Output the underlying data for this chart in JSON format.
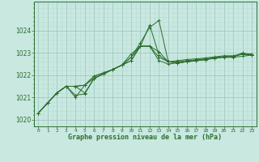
{
  "xlabel": "Graphe pression niveau de la mer (hPa)",
  "bg_color": "#c8e8e0",
  "grid_major_color": "#a0c8c0",
  "grid_minor_color": "#b8dcd8",
  "line_color": "#2d6e2d",
  "ylim": [
    1019.7,
    1025.3
  ],
  "xlim": [
    -0.5,
    23.5
  ],
  "yticks": [
    1020,
    1021,
    1022,
    1023,
    1024
  ],
  "xticks": [
    0,
    1,
    2,
    3,
    4,
    5,
    6,
    7,
    8,
    9,
    10,
    11,
    12,
    13,
    14,
    15,
    16,
    17,
    18,
    19,
    20,
    21,
    22,
    23
  ],
  "series": [
    [
      1020.3,
      1020.75,
      1021.2,
      1021.5,
      1021.5,
      1021.2,
      1021.85,
      1022.05,
      1022.25,
      1022.45,
      1022.65,
      1023.3,
      1023.3,
      1022.65,
      1022.5,
      1022.55,
      1022.6,
      1022.65,
      1022.7,
      1022.75,
      1022.8,
      1022.8,
      1022.85,
      1022.9
    ],
    [
      1020.3,
      1020.75,
      1021.2,
      1021.5,
      1021.1,
      1021.15,
      1021.85,
      1022.05,
      1022.25,
      1022.45,
      1022.8,
      1023.45,
      1024.15,
      1024.45,
      1022.6,
      1022.6,
      1022.65,
      1022.68,
      1022.73,
      1022.78,
      1022.83,
      1022.83,
      1022.95,
      1022.9
    ],
    [
      1020.3,
      1020.75,
      1021.2,
      1021.5,
      1021.5,
      1021.55,
      1021.95,
      1022.1,
      1022.25,
      1022.45,
      1022.95,
      1023.3,
      1023.3,
      1023.05,
      1022.6,
      1022.55,
      1022.6,
      1022.65,
      1022.7,
      1022.77,
      1022.82,
      1022.83,
      1023.0,
      1022.9
    ],
    [
      1020.3,
      1020.75,
      1021.2,
      1021.5,
      1021.5,
      1021.55,
      1021.95,
      1022.1,
      1022.25,
      1022.45,
      1022.8,
      1023.3,
      1023.3,
      1022.8,
      1022.6,
      1022.55,
      1022.6,
      1022.65,
      1022.7,
      1022.77,
      1022.82,
      1022.83,
      1022.95,
      1022.9
    ],
    [
      1020.3,
      1020.75,
      1021.2,
      1021.5,
      1021.0,
      1021.55,
      1021.85,
      1022.05,
      1022.25,
      1022.45,
      1022.65,
      1023.3,
      1024.25,
      1022.9,
      1022.6,
      1022.65,
      1022.7,
      1022.73,
      1022.77,
      1022.82,
      1022.87,
      1022.87,
      1022.95,
      1022.95
    ]
  ]
}
